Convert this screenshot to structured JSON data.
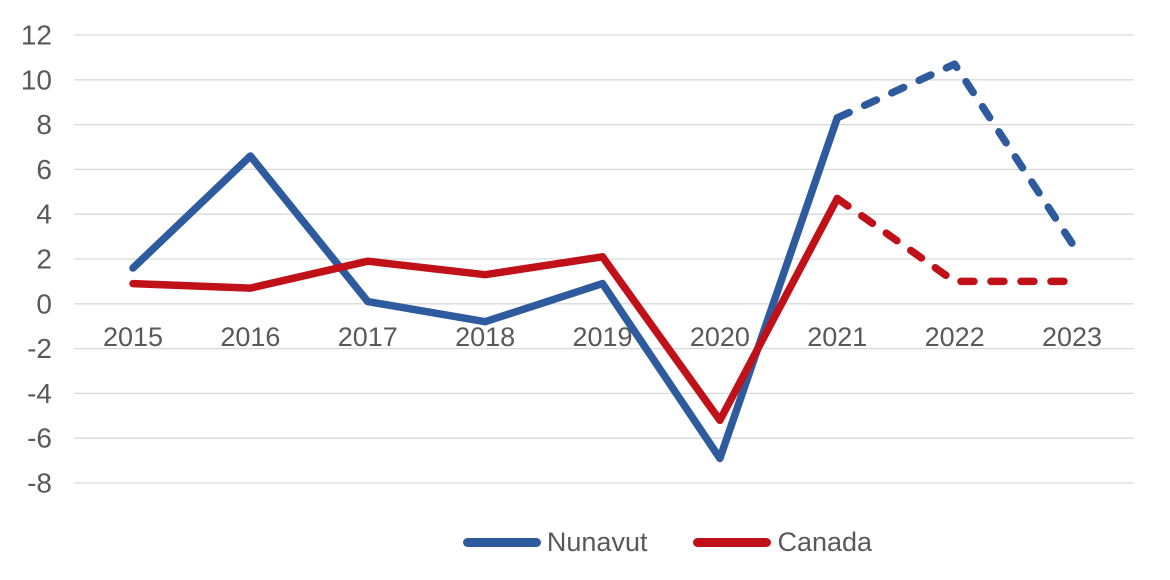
{
  "chart_data": {
    "type": "line",
    "categories": [
      "2015",
      "2016",
      "2017",
      "2018",
      "2019",
      "2020",
      "2021",
      "2022",
      "2023"
    ],
    "yticks": [
      12,
      10,
      8,
      6,
      4,
      2,
      0,
      -2,
      -4,
      -6,
      -8
    ],
    "ylim": [
      -8,
      12
    ],
    "grid": true,
    "gridline_color": "#d9d9d9",
    "axis_text_color": "#595959",
    "legend_position": "bottom",
    "title": "",
    "xlabel": "",
    "ylabel": "",
    "series": [
      {
        "name": "Nunavut",
        "color": "#2e5b9e",
        "values": [
          1.6,
          6.6,
          0.1,
          -0.8,
          0.9,
          -6.9,
          8.3,
          10.7,
          2.7
        ],
        "solid_through_index": 6,
        "dashed_from_category": "2021",
        "dashed_to_category": "2023"
      },
      {
        "name": "Canada",
        "color": "#c01119",
        "values": [
          0.9,
          0.7,
          1.9,
          1.3,
          2.1,
          -5.2,
          4.7,
          1.0,
          1.0
        ],
        "solid_through_index": 6,
        "dashed_from_category": "2021",
        "dashed_to_category": "2023"
      }
    ]
  }
}
